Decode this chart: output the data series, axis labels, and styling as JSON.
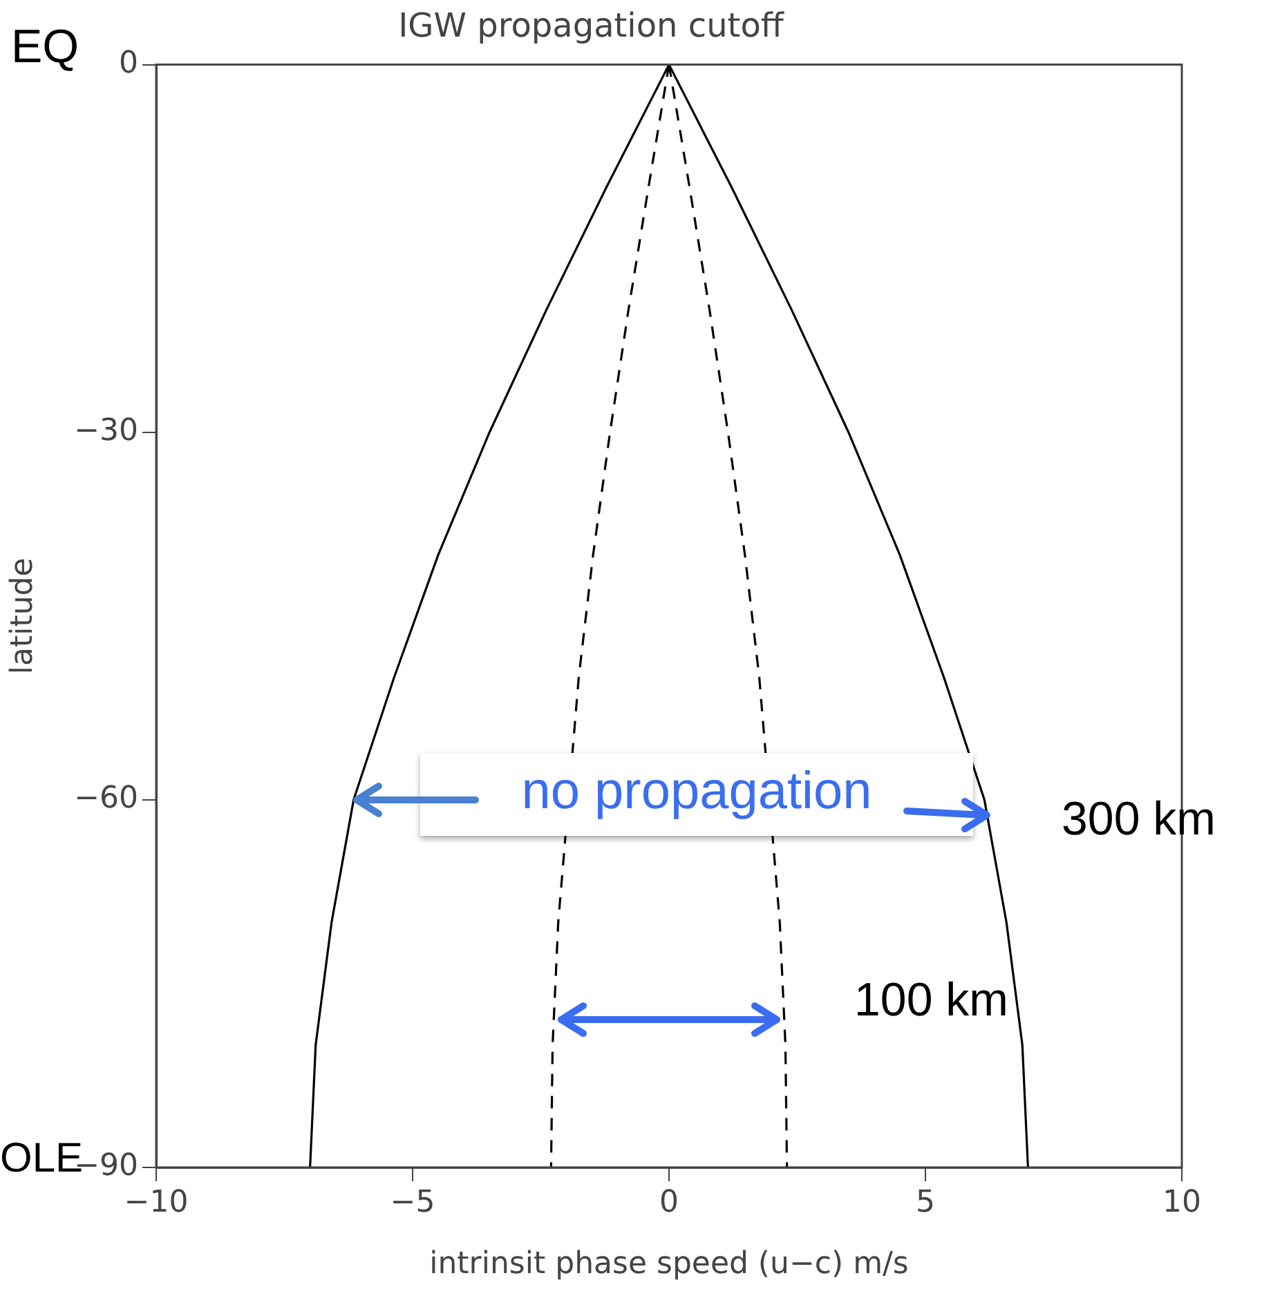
{
  "chart_data": {
    "type": "line",
    "title": "IGW propagation cutoff",
    "xlabel": "intrinsit phase speed (u−c) m/s",
    "ylabel": "latitude",
    "xlim": [
      -10,
      10
    ],
    "xticks": [
      {
        "value": -10,
        "label": "−10"
      },
      {
        "value": -5,
        "label": "−5"
      },
      0,
      5,
      10
    ],
    "ylim": [
      -90,
      0
    ],
    "yticks": [
      {
        "value": -90,
        "label": "−90"
      },
      {
        "value": -60,
        "label": "−60"
      },
      {
        "value": -30,
        "label": "−30"
      },
      0
    ],
    "grid": false,
    "legend": false,
    "marker": "none",
    "series": [
      {
        "color": "#000000",
        "line_style": "solid",
        "x": [
          0,
          1.22,
          2.39,
          3.5,
          4.5,
          5.36,
          6.15,
          6.58,
          6.89,
          7.0
        ],
        "values": [
          0,
          -10,
          -20,
          -30,
          -40,
          -50,
          -60,
          -70,
          -80,
          -90
        ]
      },
      {
        "color": "#000000",
        "line_style": "solid",
        "x": [
          0,
          -1.22,
          -2.39,
          -3.5,
          -4.5,
          -5.36,
          -6.15,
          -6.58,
          -6.89,
          -7.0
        ],
        "values": [
          0,
          -10,
          -20,
          -30,
          -40,
          -50,
          -60,
          -70,
          -80,
          -90
        ]
      },
      {
        "color": "#000000",
        "line_style": "dashed",
        "x": [
          0,
          0.4,
          0.79,
          1.15,
          1.48,
          1.76,
          2.16,
          2.27,
          2.3
        ],
        "values": [
          0,
          -10,
          -20,
          -30,
          -40,
          -50,
          -70,
          -80,
          -90
        ]
      },
      {
        "color": "#000000",
        "line_style": "dashed",
        "x": [
          0,
          -0.4,
          -0.79,
          -1.15,
          -1.48,
          -1.76,
          -2.16,
          -2.27,
          -2.3
        ],
        "values": [
          0,
          -10,
          -20,
          -30,
          -40,
          -50,
          -70,
          -80,
          -90
        ]
      }
    ],
    "annotations": [
      "EQ",
      "OLE",
      {
        "text": "no propagation",
        "x": -6.15,
        "y": -60
      },
      "300 km",
      "100 km"
    ]
  }
}
